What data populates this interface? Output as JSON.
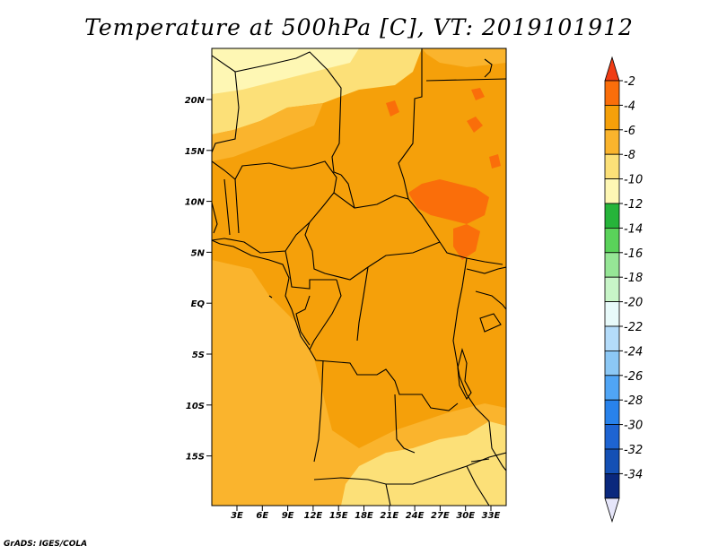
{
  "title": "Temperature at 500hPa [C], VT: 2019101912",
  "credit": "GrADS: IGES/COLA",
  "map": {
    "lat_labels": [
      "20N",
      "15N",
      "10N",
      "5N",
      "EQ",
      "5S",
      "10S",
      "15S"
    ],
    "lon_labels": [
      "3E",
      "6E",
      "9E",
      "12E",
      "15E",
      "18E",
      "21E",
      "24E",
      "27E",
      "30E",
      "33E"
    ]
  },
  "colorbar": {
    "labels": [
      "-2",
      "-4",
      "-6",
      "-8",
      "-10",
      "-12",
      "-14",
      "-16",
      "-18",
      "-20",
      "-22",
      "-24",
      "-26",
      "-28",
      "-30",
      "-32",
      "-34"
    ],
    "colors": [
      "#f03c14",
      "#fa6e0a",
      "#f5a00a",
      "#fab42d",
      "#fce078",
      "#fef7b4",
      "#26b43a",
      "#5ad25a",
      "#96e696",
      "#c8f5c8",
      "#e8fafa",
      "#b4dcfa",
      "#8cc8f5",
      "#50a5f5",
      "#2882eb",
      "#1e64d2",
      "#1450b4",
      "#0a287d",
      "#e6e6fa"
    ]
  },
  "fields": {
    "pale_yellow": "#fef7b4",
    "light_yellow": "#fce078",
    "yellow_orange": "#fab42d",
    "orange": "#f5a00a",
    "deep_orange": "#fa6e0a"
  }
}
